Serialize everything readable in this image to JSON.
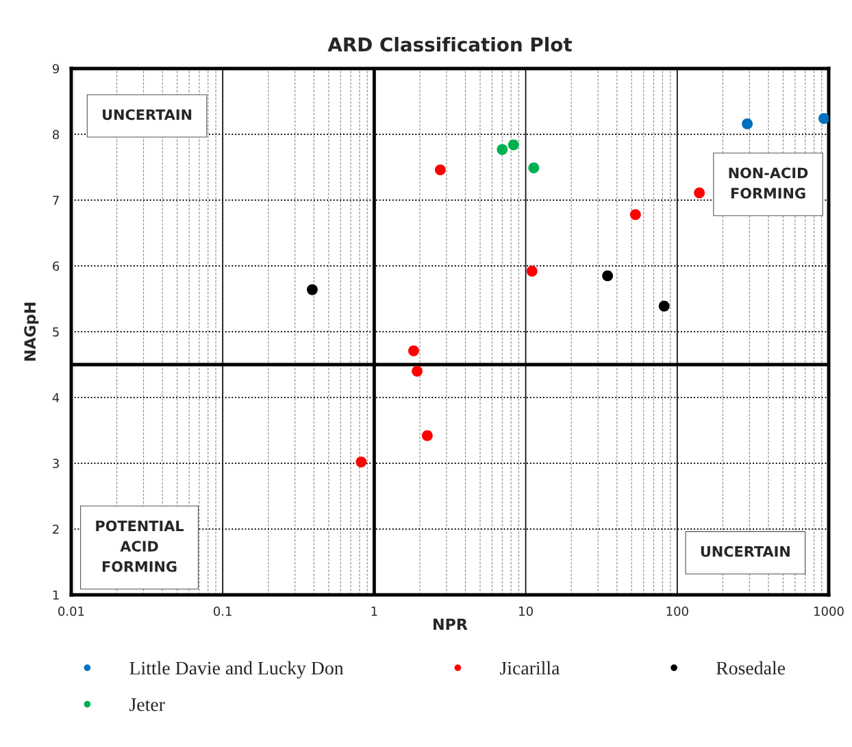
{
  "chart_data": {
    "type": "scatter",
    "title": "ARD Classification Plot",
    "xlabel": "NPR",
    "ylabel": "NAGpH",
    "log": "x",
    "xlim": [
      0.01,
      1000
    ],
    "xticks": [
      0.01,
      0.1,
      1,
      10,
      100,
      1000
    ],
    "ylim": [
      1,
      9
    ],
    "yticks": [
      1,
      2,
      3,
      4,
      5,
      6,
      7,
      8,
      9
    ],
    "grid": true,
    "legend": "bottom",
    "marker": "circle",
    "series": [
      {
        "name": "Little Davie and Lucky Don",
        "color": "#0070c0",
        "x": [
          290,
          930
        ],
        "values": [
          8.16,
          8.24
        ]
      },
      {
        "name": "Jeter",
        "color": "#00b050",
        "x": [
          7.0,
          8.3,
          11.3
        ],
        "values": [
          7.77,
          7.84,
          7.49
        ]
      },
      {
        "name": "Jicarilla",
        "color": "#ff0000",
        "x": [
          2.73,
          140,
          53,
          11.0,
          1.82,
          1.92,
          2.24,
          0.82
        ],
        "values": [
          7.46,
          7.11,
          6.78,
          5.92,
          4.71,
          4.4,
          3.42,
          3.02
        ]
      },
      {
        "name": "Rosedale",
        "color": "#000000",
        "x": [
          0.39,
          34.7,
          82
        ],
        "values": [
          5.64,
          5.85,
          5.39
        ]
      }
    ],
    "ref_lines": [
      {
        "axis": "x",
        "value": 1,
        "label": null
      },
      {
        "axis": "y",
        "value": 4.5,
        "label": null
      }
    ],
    "annotations": [
      "UNCERTAIN",
      "NON-ACID\nFORMING",
      "POTENTIAL\nACID\nFORMING",
      "UNCERTAIN"
    ]
  }
}
